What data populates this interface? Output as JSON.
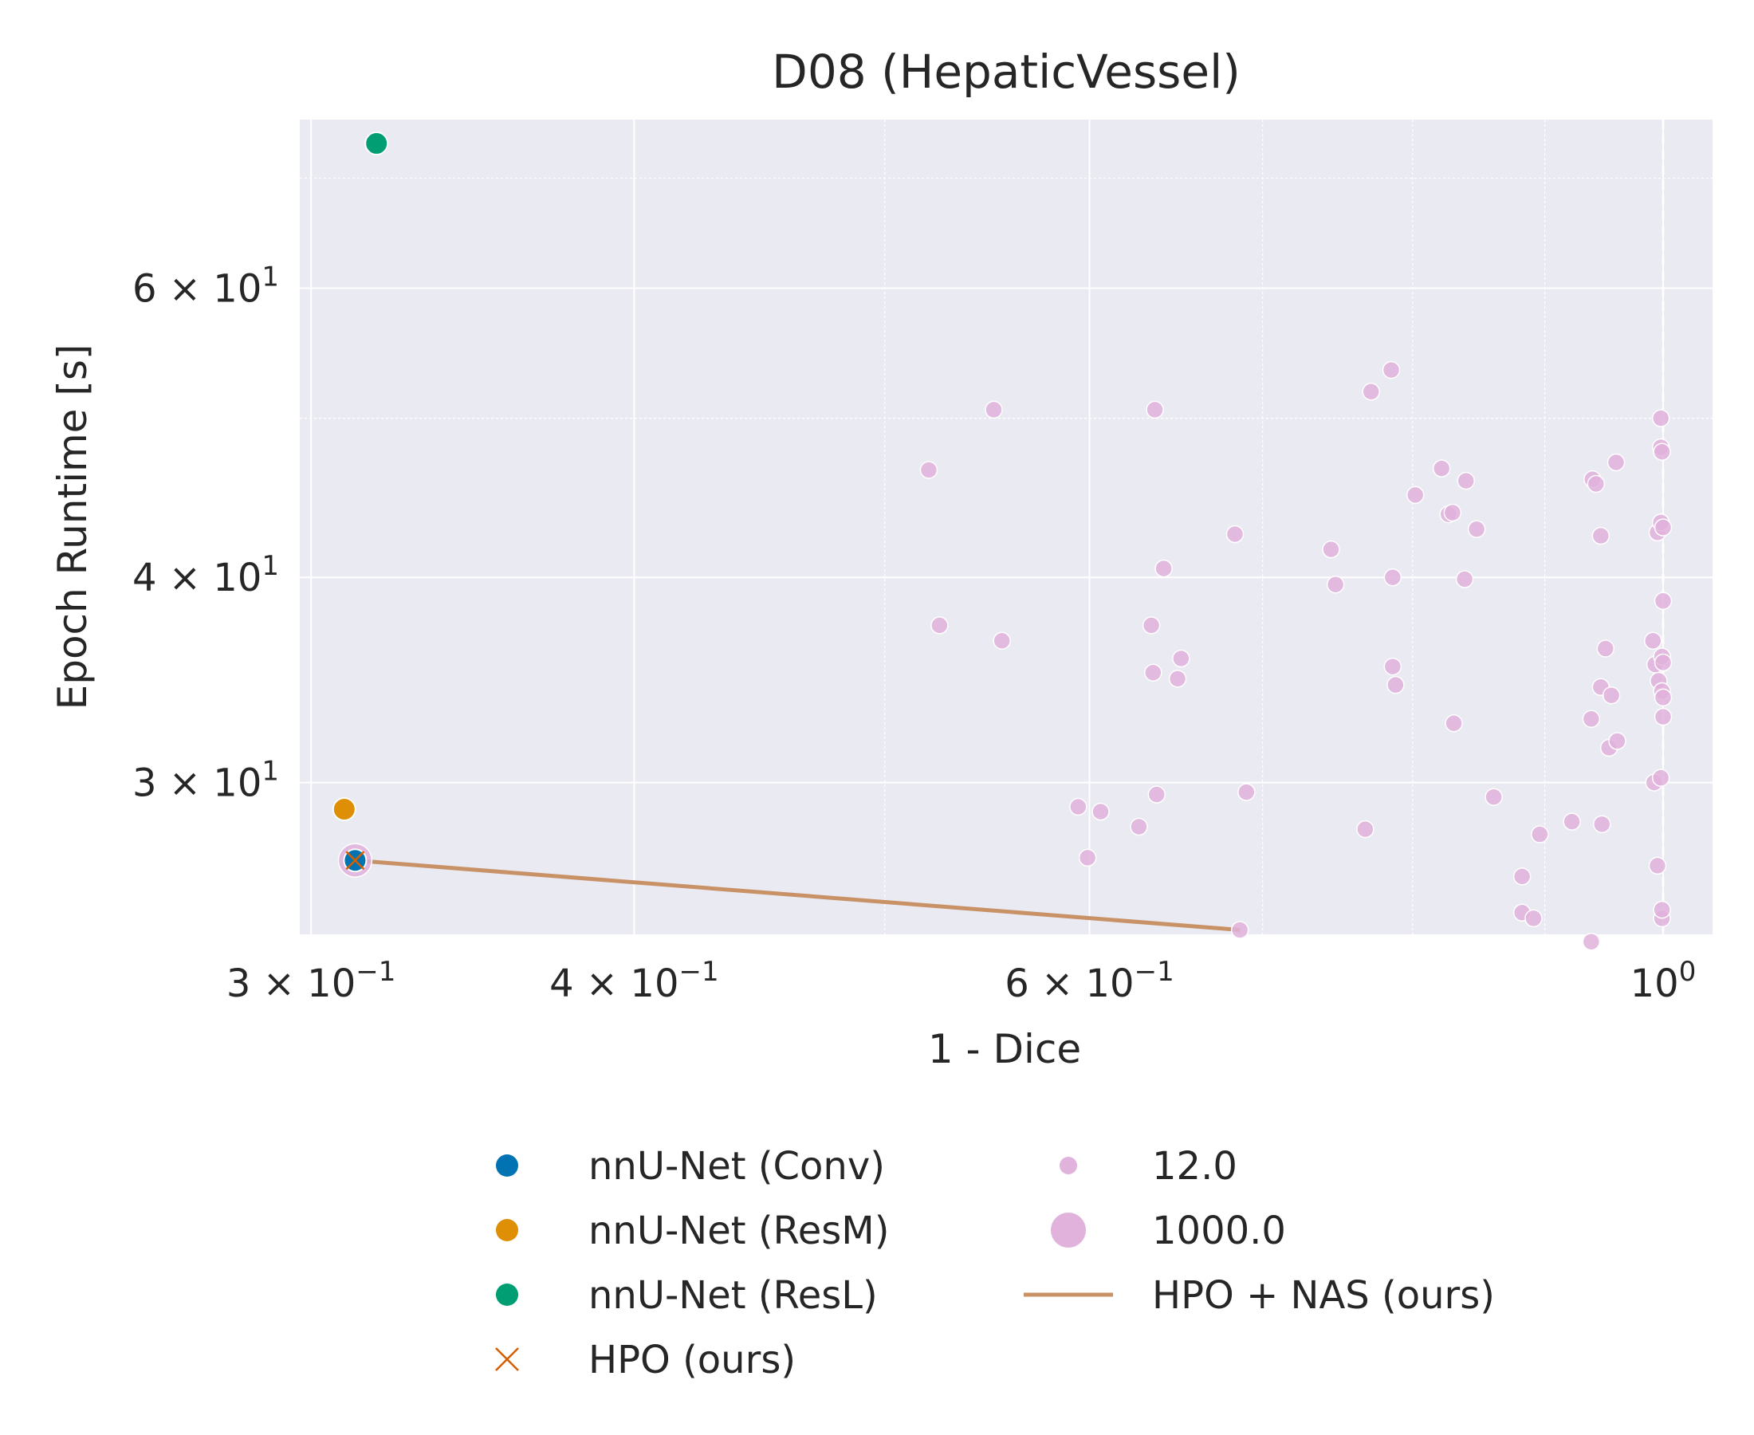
{
  "chart_data": {
    "type": "scatter",
    "title": "D08 (HepaticVessel)",
    "xlabel": "1 - Dice",
    "ylabel": "Epoch Runtime [s]",
    "xscale": "log",
    "yscale": "log",
    "xlim": [
      0.297,
      1.045
    ],
    "ylim": [
      24.25,
      76.0
    ],
    "grid": true,
    "x_ticks": [
      {
        "value": 0.3,
        "label": "3 × 10",
        "exp": "−1"
      },
      {
        "value": 0.4,
        "label": "4 × 10",
        "exp": "−1"
      },
      {
        "value": 0.6,
        "label": "6 × 10",
        "exp": "−1"
      },
      {
        "value": 1.0,
        "label": "10",
        "exp": "0"
      }
    ],
    "x_minor_ticks": [
      0.5,
      0.7,
      0.8,
      0.9
    ],
    "y_ticks": [
      {
        "value": 30,
        "label": "3 × 10",
        "exp": "1"
      },
      {
        "value": 40,
        "label": "4 × 10",
        "exp": "1"
      },
      {
        "value": 60,
        "label": "6 × 10",
        "exp": "1"
      }
    ],
    "y_minor_ticks": [
      50,
      70
    ],
    "vline": {
      "x": 1.0,
      "style": "dashed",
      "color": "#ffffff"
    },
    "colors": {
      "plot_bg": "#eaeaf2",
      "conv": "#0173b2",
      "resm": "#de8f05",
      "resl": "#029e73",
      "hpo": "#d55e00",
      "hponas_line": "#c89166",
      "nas_points": "#e0b2dc"
    },
    "series": [
      {
        "name": "nnU-Net (Conv)",
        "marker": "circle",
        "color": "#0173b2",
        "points": [
          [
            0.312,
            26.9
          ]
        ]
      },
      {
        "name": "nnU-Net (ResM)",
        "marker": "circle",
        "color": "#de8f05",
        "points": [
          [
            0.309,
            28.9
          ]
        ]
      },
      {
        "name": "nnU-Net (ResL)",
        "marker": "circle",
        "color": "#029e73",
        "points": [
          [
            0.318,
            73.5
          ]
        ]
      },
      {
        "name": "HPO (ours)",
        "marker": "x",
        "color": "#d55e00",
        "points": [
          [
            0.312,
            26.9
          ]
        ]
      },
      {
        "name": "HPO + NAS (ours)",
        "marker": "line",
        "color": "#c89166",
        "points": [
          [
            0.312,
            26.9
          ],
          [
            0.686,
            24.4
          ]
        ]
      }
    ],
    "nas_points": {
      "color": "#e0b2dc",
      "size_legend": [
        {
          "label": "12.0",
          "size": 12.0
        },
        {
          "label": "1000.0",
          "size": 1000.0
        }
      ],
      "points": [
        [
          0.312,
          26.9,
          1000
        ],
        [
          0.686,
          24.4,
          12
        ],
        [
          0.52,
          46.5,
          12
        ],
        [
          0.551,
          50.6,
          12
        ],
        [
          0.636,
          50.6,
          12
        ],
        [
          0.641,
          40.5,
          12
        ],
        [
          0.525,
          37.4,
          12
        ],
        [
          0.555,
          36.6,
          12
        ],
        [
          0.634,
          37.4,
          12
        ],
        [
          0.651,
          35.7,
          12
        ],
        [
          0.635,
          35.0,
          12
        ],
        [
          0.649,
          34.7,
          12
        ],
        [
          0.683,
          42.5,
          12
        ],
        [
          0.69,
          29.6,
          12
        ],
        [
          0.594,
          29.0,
          12
        ],
        [
          0.599,
          27.0,
          12
        ],
        [
          0.606,
          28.8,
          12
        ],
        [
          0.627,
          28.2,
          12
        ],
        [
          0.637,
          29.5,
          12
        ],
        [
          0.771,
          51.9,
          12
        ],
        [
          0.785,
          53.5,
          12
        ],
        [
          0.744,
          41.6,
          12
        ],
        [
          0.747,
          39.6,
          12
        ],
        [
          0.786,
          40.0,
          12
        ],
        [
          0.786,
          35.3,
          12
        ],
        [
          0.788,
          34.4,
          12
        ],
        [
          0.767,
          28.1,
          12
        ],
        [
          0.802,
          44.9,
          12
        ],
        [
          0.821,
          46.6,
          12
        ],
        [
          0.826,
          43.7,
          12
        ],
        [
          0.829,
          43.8,
          12
        ],
        [
          0.839,
          45.8,
          12
        ],
        [
          0.847,
          42.8,
          12
        ],
        [
          0.838,
          39.9,
          12
        ],
        [
          0.83,
          32.6,
          12
        ],
        [
          0.86,
          29.4,
          12
        ],
        [
          0.882,
          26.3,
          12
        ],
        [
          0.882,
          25.0,
          12
        ],
        [
          0.891,
          24.8,
          12
        ],
        [
          0.896,
          27.9,
          12
        ],
        [
          0.922,
          28.4,
          12
        ],
        [
          0.938,
          24.0,
          12
        ],
        [
          0.938,
          32.8,
          12
        ],
        [
          0.939,
          45.9,
          12
        ],
        [
          0.942,
          45.6,
          12
        ],
        [
          0.946,
          42.4,
          12
        ],
        [
          0.946,
          34.3,
          12
        ],
        [
          0.947,
          28.3,
          12
        ],
        [
          0.95,
          36.2,
          12
        ],
        [
          0.953,
          31.5,
          12
        ],
        [
          0.955,
          33.9,
          12
        ],
        [
          0.959,
          47.0,
          12
        ],
        [
          0.96,
          31.8,
          12
        ],
        [
          0.991,
          36.6,
          12
        ],
        [
          0.992,
          30.0,
          12
        ],
        [
          0.993,
          35.4,
          12
        ],
        [
          0.995,
          42.6,
          12
        ],
        [
          0.995,
          26.7,
          12
        ],
        [
          0.996,
          34.6,
          12
        ],
        [
          0.998,
          50.0,
          12
        ],
        [
          0.998,
          48.0,
          12
        ],
        [
          0.998,
          43.2,
          12
        ],
        [
          0.998,
          30.2,
          12
        ],
        [
          0.999,
          47.7,
          12
        ],
        [
          0.999,
          35.8,
          12
        ],
        [
          0.999,
          34.1,
          12
        ],
        [
          0.999,
          24.8,
          12
        ],
        [
          0.999,
          25.1,
          12
        ],
        [
          1.0,
          42.9,
          12
        ],
        [
          1.0,
          38.7,
          12
        ],
        [
          1.0,
          35.5,
          12
        ],
        [
          1.0,
          33.8,
          12
        ],
        [
          1.0,
          32.9,
          12
        ]
      ]
    },
    "legend": {
      "placement": "bottom-center",
      "columns": [
        [
          {
            "label": "nnU-Net (Conv)",
            "kind": "dot",
            "color": "#0173b2"
          },
          {
            "label": "nnU-Net (ResM)",
            "kind": "dot",
            "color": "#de8f05"
          },
          {
            "label": "nnU-Net (ResL)",
            "kind": "dot",
            "color": "#029e73"
          },
          {
            "label": "HPO (ours)",
            "kind": "x",
            "color": "#d55e00"
          }
        ],
        [
          {
            "label": "12.0",
            "kind": "small-dot",
            "color": "#e0b2dc"
          },
          {
            "label": "1000.0",
            "kind": "big-dot",
            "color": "#e0b2dc"
          },
          {
            "label": "HPO + NAS (ours)",
            "kind": "line",
            "color": "#c89166"
          }
        ]
      ]
    }
  }
}
